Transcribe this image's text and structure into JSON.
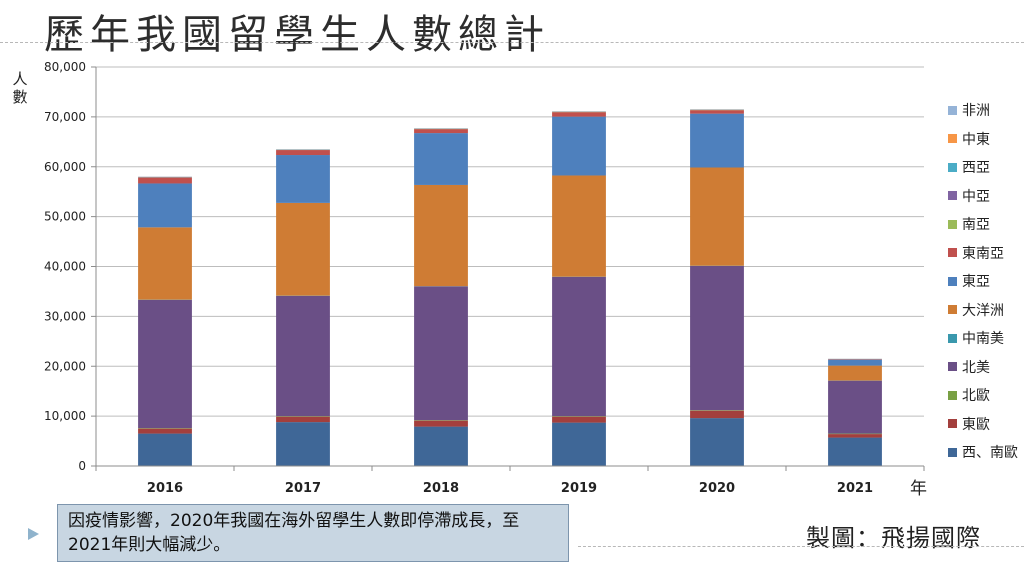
{
  "title": "歷年我國留學生人數總計",
  "y_axis_label": "人數",
  "x_axis_unit": "年",
  "note": "因疫情影響，2020年我國在海外留學生人數即停滯成長，至2021年則大幅減少。",
  "credit": "製圖：飛揚國際",
  "chart_data": {
    "type": "bar",
    "stacked": true,
    "categories": [
      "2016",
      "2017",
      "2018",
      "2019",
      "2020",
      "2021"
    ],
    "ylim": [
      0,
      80000
    ],
    "yticks": [
      0,
      10000,
      20000,
      30000,
      40000,
      50000,
      60000,
      70000,
      80000
    ],
    "ytick_labels": [
      "0",
      "10,000",
      "20,000",
      "30,000",
      "40,000",
      "50,000",
      "60,000",
      "70,000",
      "80,000"
    ],
    "grid": true,
    "legend_position": "right",
    "series": [
      {
        "name": "西、南歐",
        "color": "#3f6797",
        "values": [
          6500,
          8800,
          7900,
          8700,
          9600,
          5700
        ]
      },
      {
        "name": "東歐",
        "color": "#a33f3d",
        "values": [
          1000,
          1100,
          1200,
          1200,
          1500,
          700
        ]
      },
      {
        "name": "北歐",
        "color": "#79a044",
        "values": [
          100,
          100,
          100,
          100,
          100,
          100
        ]
      },
      {
        "name": "北美",
        "color": "#6a4f86",
        "values": [
          25700,
          24100,
          26800,
          27900,
          28900,
          10600
        ]
      },
      {
        "name": "中南美",
        "color": "#3a98ad",
        "values": [
          50,
          50,
          50,
          50,
          50,
          30
        ]
      },
      {
        "name": "大洋洲",
        "color": "#cf7c34",
        "values": [
          14500,
          18600,
          20300,
          20300,
          19700,
          3000
        ]
      },
      {
        "name": "東亞",
        "color": "#4e80bd",
        "values": [
          8800,
          9600,
          10400,
          11800,
          10800,
          1200
        ]
      },
      {
        "name": "東南亞",
        "color": "#c0504d",
        "values": [
          1200,
          1000,
          800,
          900,
          700,
          100
        ]
      },
      {
        "name": "南亞",
        "color": "#9bbb59",
        "values": [
          30,
          30,
          30,
          30,
          30,
          10
        ]
      },
      {
        "name": "中亞",
        "color": "#8064a2",
        "values": [
          10,
          10,
          10,
          10,
          10,
          5
        ]
      },
      {
        "name": "西亞",
        "color": "#4bacc6",
        "values": [
          50,
          50,
          50,
          50,
          50,
          20
        ]
      },
      {
        "name": "中東",
        "color": "#f79646",
        "values": [
          40,
          40,
          40,
          40,
          40,
          20
        ]
      },
      {
        "name": "非洲",
        "color": "#95b3d7",
        "values": [
          60,
          60,
          60,
          60,
          60,
          30
        ]
      }
    ]
  }
}
